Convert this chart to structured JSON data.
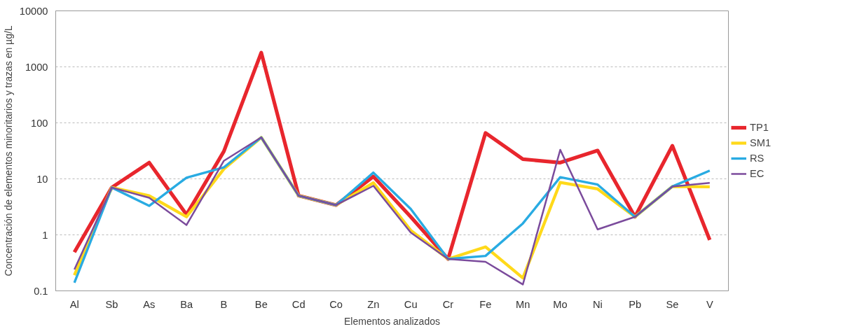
{
  "chart_data": {
    "type": "line",
    "xlabel": "Elementos analizados",
    "ylabel": "Concentración de elementos minoritarios y trazas en µg/L",
    "categories": [
      "Al",
      "Sb",
      "As",
      "Ba",
      "B",
      "Be",
      "Cd",
      "Co",
      "Zn",
      "Cu",
      "Cr",
      "Fe",
      "Mn",
      "Mo",
      "Ni",
      "Pb",
      "Se",
      "V"
    ],
    "series": [
      {
        "name": "TP1",
        "color": "#e8262d",
        "values": [
          0.49,
          7,
          19.5,
          2.3,
          31,
          1800,
          5,
          3.4,
          11,
          2.1,
          0.37,
          66,
          22.5,
          19.5,
          32,
          2.1,
          39,
          0.81
        ]
      },
      {
        "name": "SM1",
        "color": "#ffd91a",
        "values": [
          0.19,
          7,
          5,
          2.1,
          15,
          55,
          5,
          3.4,
          8.5,
          1.2,
          0.37,
          0.61,
          0.17,
          8.6,
          6.6,
          2.1,
          7.3,
          7.2
        ]
      },
      {
        "name": "RS",
        "color": "#29abe2",
        "values": [
          0.14,
          7,
          3.3,
          10.5,
          16,
          55,
          5,
          3.4,
          12.9,
          2.9,
          0.37,
          0.42,
          1.6,
          10.7,
          7.9,
          2.1,
          7.3,
          14
        ]
      },
      {
        "name": "EC",
        "color": "#7b4b9c",
        "values": [
          0.24,
          7,
          4.6,
          1.5,
          21,
          55,
          5,
          3.4,
          7.5,
          1.1,
          0.37,
          0.33,
          0.13,
          33,
          1.25,
          2.1,
          7.3,
          8.5
        ]
      }
    ],
    "log": "y",
    "ylim": [
      0.1,
      10000
    ],
    "yticks": [
      0.1,
      1,
      10,
      100,
      1000,
      10000
    ],
    "grid": "y",
    "legend": "right",
    "marker": "none",
    "line_style": "solid"
  }
}
